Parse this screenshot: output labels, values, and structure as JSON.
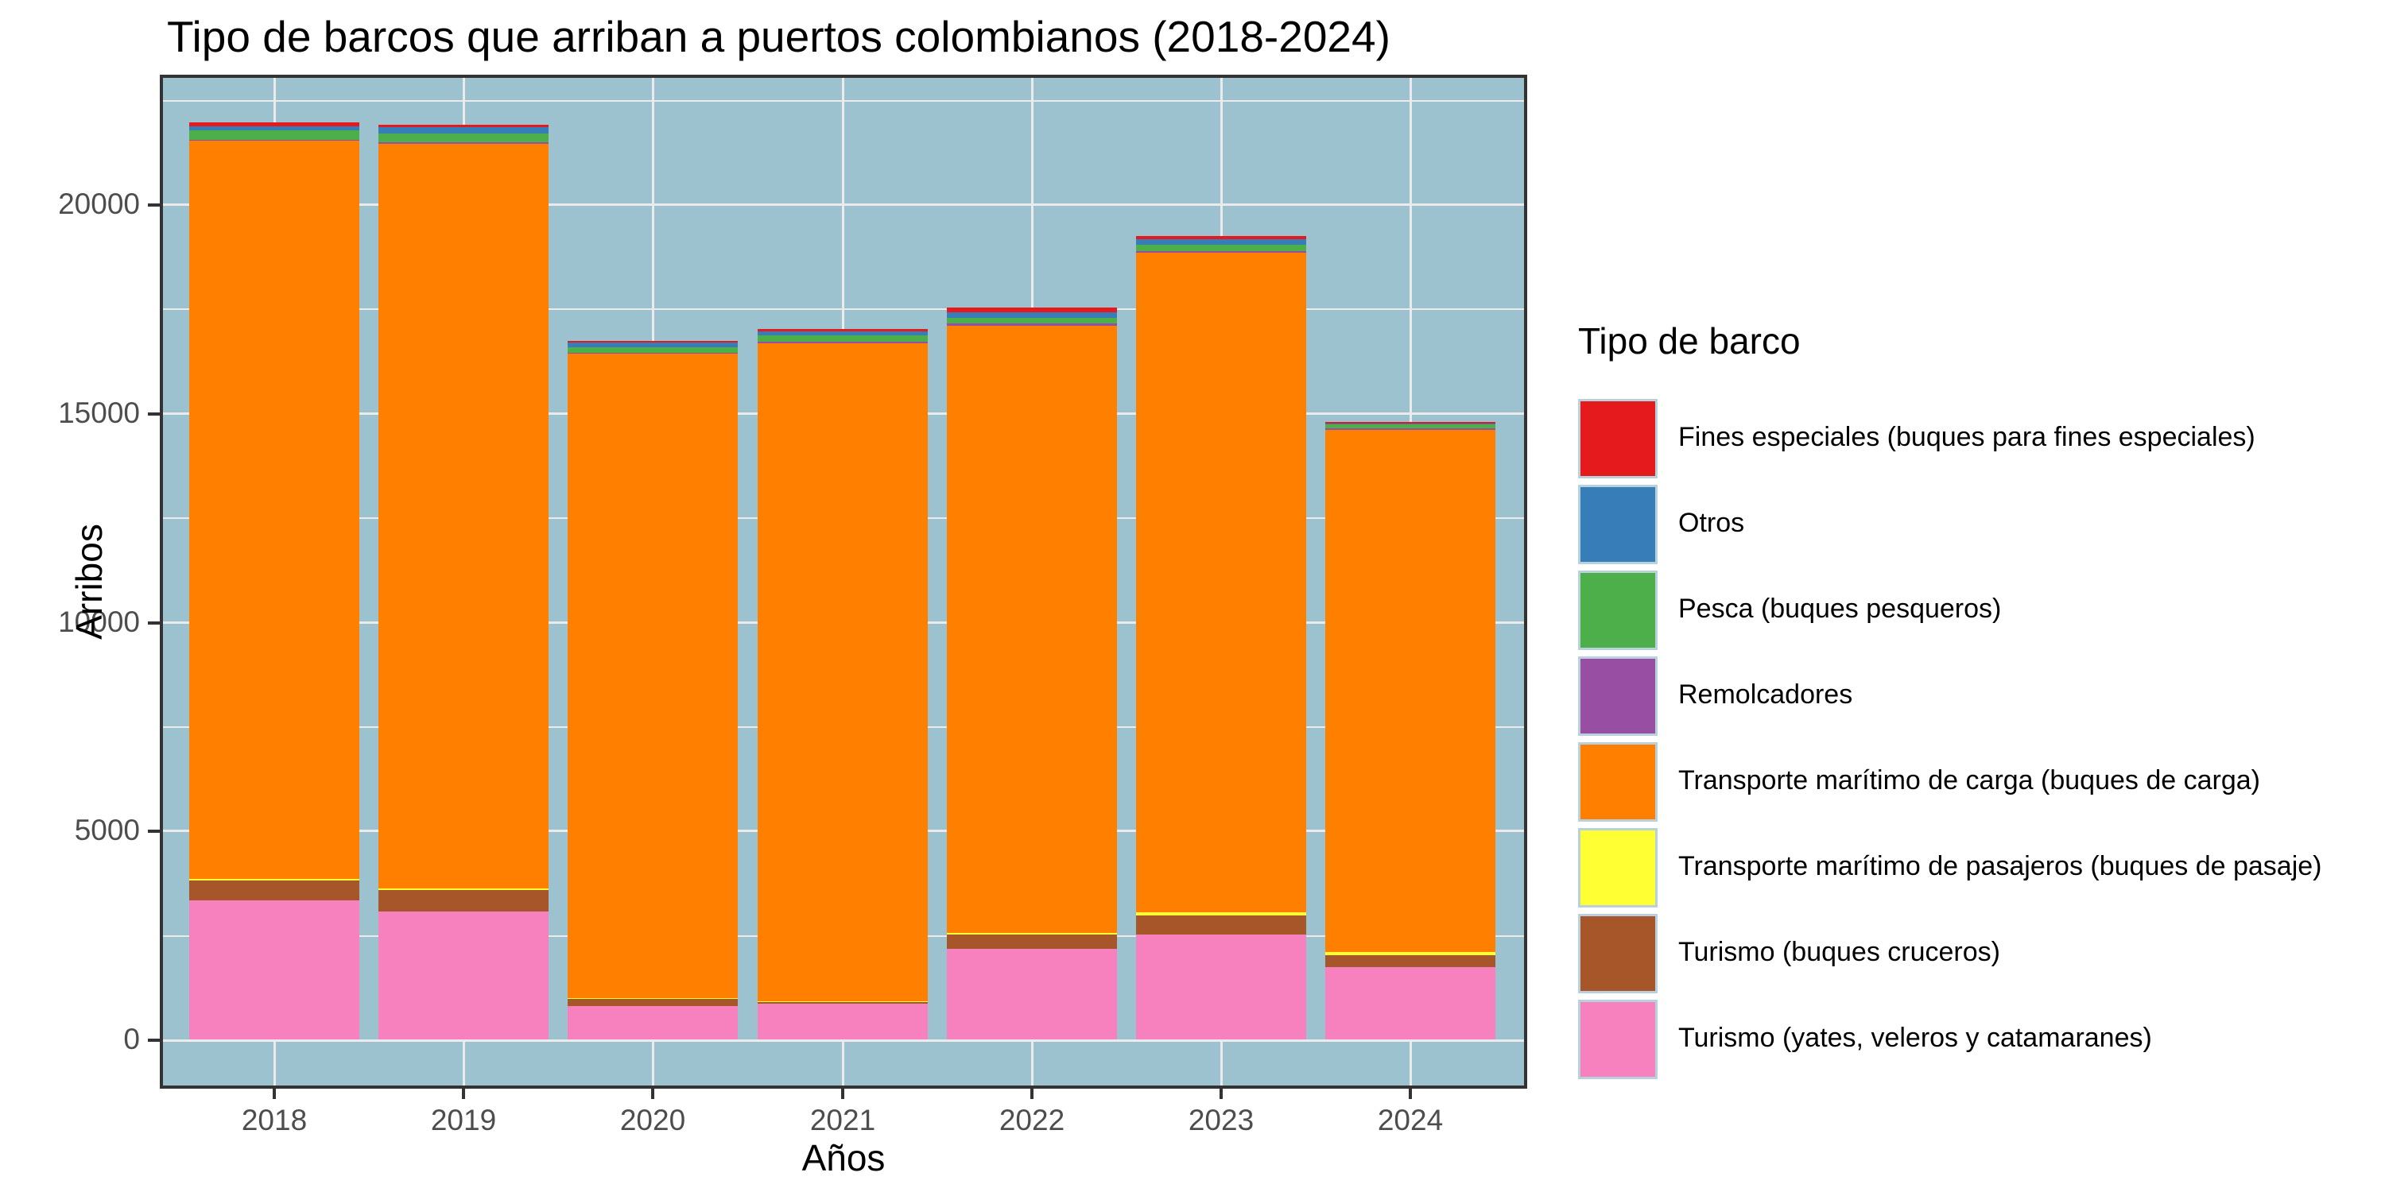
{
  "title": "Tipo de barcos que arriban a puertos colombianos (2018-2024)",
  "axes": {
    "x_label": "Años",
    "y_label": "Arribos",
    "x_tick_labels": [
      "2018",
      "2019",
      "2020",
      "2021",
      "2022",
      "2023",
      "2024"
    ],
    "y_tick_labels": [
      "0",
      "5000",
      "10000",
      "15000",
      "20000"
    ]
  },
  "legend": {
    "title": "Tipo de barco"
  },
  "colors": {
    "panel_background": "#9CC1CF",
    "gridline": "#EBEBEB",
    "axis_text": "#4D4D4D",
    "panel_border": "#333333",
    "title_text": "#000000"
  },
  "chart_data": {
    "type": "bar",
    "stacked": true,
    "title": "Tipo de barcos que arriban a puertos colombianos (2018-2024)",
    "xlabel": "Años",
    "ylabel": "Arribos",
    "categories": [
      "2018",
      "2019",
      "2020",
      "2021",
      "2022",
      "2023",
      "2024"
    ],
    "y_major_ticks": [
      0,
      5000,
      10000,
      15000,
      20000
    ],
    "y_minor_ticks": [
      2500,
      7500,
      12500,
      17500,
      22500
    ],
    "ylim": [
      0,
      23000
    ],
    "grid": true,
    "legend_position": "right",
    "stack_note": "first series listed renders at the top of each stacked bar",
    "series": [
      {
        "name": "Fines especiales (buques para fines especiales)",
        "color": "#E41A1C",
        "values": [
          90,
          60,
          50,
          55,
          105,
          75,
          40
        ]
      },
      {
        "name": "Otros",
        "color": "#377EB8",
        "values": [
          100,
          150,
          100,
          95,
          150,
          145,
          25
        ]
      },
      {
        "name": "Pesca (buques pesqueros)",
        "color": "#4DAF4A",
        "values": [
          230,
          210,
          130,
          150,
          125,
          150,
          95
        ]
      },
      {
        "name": "Remolcadores",
        "color": "#984EA3",
        "values": [
          20,
          40,
          15,
          40,
          50,
          45,
          30
        ]
      },
      {
        "name": "Transporte marítimo de carga (buques de carga)",
        "color": "#FF7F00",
        "values": [
          17680,
          17840,
          15440,
          15750,
          14545,
          15790,
          12510
        ]
      },
      {
        "name": "Transporte marítimo de pasajeros (buques de pasaje)",
        "color": "#FFFF33",
        "values": [
          30,
          40,
          25,
          15,
          40,
          70,
          70
        ]
      },
      {
        "name": "Turismo (buques cruceros)",
        "color": "#A65628",
        "values": [
          480,
          510,
          170,
          40,
          340,
          460,
          285
        ]
      },
      {
        "name": "Turismo (yates, veleros y catamaranes)",
        "color": "#F781BF",
        "values": [
          3330,
          3060,
          800,
          860,
          2170,
          2510,
          1730
        ]
      }
    ],
    "totals": [
      21960,
      21910,
      16730,
      17005,
      17525,
      19245,
      14785
    ]
  }
}
